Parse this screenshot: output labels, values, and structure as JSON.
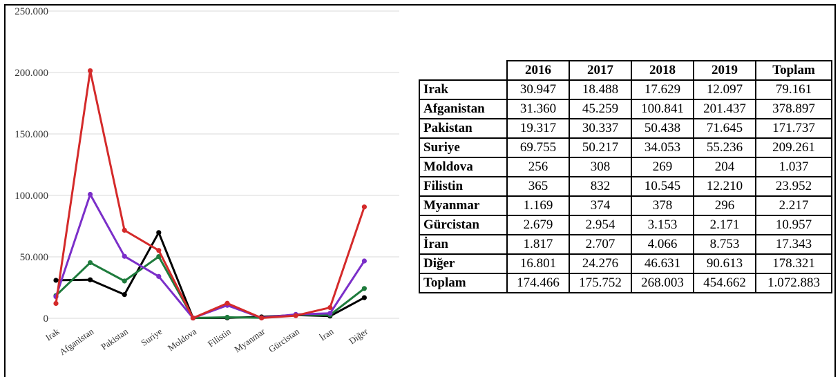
{
  "chart_data": {
    "type": "line",
    "categories": [
      "Irak",
      "Afganistan",
      "Pakistan",
      "Suriye",
      "Moldova",
      "Filistin",
      "Myanmar",
      "Gürcistan",
      "İran",
      "Diğer"
    ],
    "y_tick_labels": [
      "0",
      "50.000",
      "100.000",
      "150.000",
      "200.000",
      "250.000"
    ],
    "ylim": [
      0,
      250000
    ],
    "grid": true,
    "legend": "none",
    "series": [
      {
        "color": "#000000",
        "values": [
          30947,
          31360,
          19317,
          69755,
          256,
          365,
          1169,
          2679,
          1817,
          16801
        ]
      },
      {
        "color": "#1e7b3c",
        "values": [
          18488,
          45259,
          30337,
          50217,
          308,
          832,
          374,
          2954,
          2707,
          24276
        ]
      },
      {
        "color": "#7b2fc9",
        "values": [
          17629,
          100841,
          50438,
          34053,
          269,
          10545,
          378,
          3153,
          4066,
          46631
        ]
      },
      {
        "color": "#d42a2a",
        "values": [
          12097,
          201437,
          71645,
          55236,
          204,
          12210,
          296,
          2171,
          8753,
          90613
        ]
      }
    ]
  },
  "table": {
    "headers": [
      "",
      "2016",
      "2017",
      "2018",
      "2019",
      "Toplam"
    ],
    "rows": [
      {
        "label": "Irak",
        "cells": [
          "30.947",
          "18.488",
          "17.629",
          "12.097",
          "79.161"
        ]
      },
      {
        "label": "Afganistan",
        "cells": [
          "31.360",
          "45.259",
          "100.841",
          "201.437",
          "378.897"
        ]
      },
      {
        "label": "Pakistan",
        "cells": [
          "19.317",
          "30.337",
          "50.438",
          "71.645",
          "171.737"
        ]
      },
      {
        "label": "Suriye",
        "cells": [
          "69.755",
          "50.217",
          "34.053",
          "55.236",
          "209.261"
        ]
      },
      {
        "label": "Moldova",
        "cells": [
          "256",
          "308",
          "269",
          "204",
          "1.037"
        ]
      },
      {
        "label": "Filistin",
        "cells": [
          "365",
          "832",
          "10.545",
          "12.210",
          "23.952"
        ]
      },
      {
        "label": "Myanmar",
        "cells": [
          "1.169",
          "374",
          "378",
          "296",
          "2.217"
        ]
      },
      {
        "label": "Gürcistan",
        "cells": [
          "2.679",
          "2.954",
          "3.153",
          "2.171",
          "10.957"
        ]
      },
      {
        "label": "İran",
        "cells": [
          "1.817",
          "2.707",
          "4.066",
          "8.753",
          "17.343"
        ]
      },
      {
        "label": "Diğer",
        "cells": [
          "16.801",
          "24.276",
          "46.631",
          "90.613",
          "178.321"
        ]
      },
      {
        "label": "Toplam",
        "cells": [
          "174.466",
          "175.752",
          "268.003",
          "454.662",
          "1.072.883"
        ]
      }
    ]
  }
}
